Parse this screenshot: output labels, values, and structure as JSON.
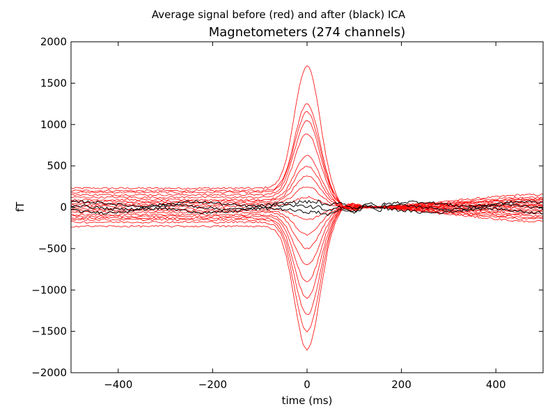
{
  "figure": {
    "suptitle": "Average signal before (red) and after (black) ICA"
  },
  "chart_data": {
    "type": "line",
    "title": "Magnetometers (274 channels)",
    "xlabel": "time (ms)",
    "ylabel": "fT",
    "xlim": [
      -500,
      500
    ],
    "ylim": [
      -2000,
      2000
    ],
    "xticks": [
      -400,
      -200,
      0,
      200,
      400
    ],
    "xtick_labels": [
      "−400",
      "−200",
      "0",
      "200",
      "400"
    ],
    "yticks": [
      -2000,
      -1500,
      -1000,
      -500,
      0,
      500,
      1000,
      1500,
      2000
    ],
    "ytick_labels": [
      "−2000",
      "−1500",
      "−1000",
      "−500",
      "0",
      "500",
      "1000",
      "1500",
      "2000"
    ],
    "grid": false,
    "channels": 274,
    "colors": {
      "before": "#ff0000",
      "after": "#000000"
    },
    "series": [
      {
        "group": "before",
        "color": "#ff0000",
        "peak_at_0ms": 1710,
        "baseline_pre": 230,
        "baseline_post": 150
      },
      {
        "group": "before",
        "color": "#ff0000",
        "peak_at_0ms": 1250,
        "baseline_pre": 200,
        "baseline_post": 120
      },
      {
        "group": "before",
        "color": "#ff0000",
        "peak_at_0ms": 1150,
        "baseline_pre": 180,
        "baseline_post": 100
      },
      {
        "group": "before",
        "color": "#ff0000",
        "peak_at_0ms": 1050,
        "baseline_pre": 150,
        "baseline_post": 90
      },
      {
        "group": "before",
        "color": "#ff0000",
        "peak_at_0ms": 890,
        "baseline_pre": 120,
        "baseline_post": 80
      },
      {
        "group": "before",
        "color": "#ff0000",
        "peak_at_0ms": 620,
        "baseline_pre": 90,
        "baseline_post": 60
      },
      {
        "group": "before",
        "color": "#ff0000",
        "peak_at_0ms": 500,
        "baseline_pre": 70,
        "baseline_post": 40
      },
      {
        "group": "before",
        "color": "#ff0000",
        "peak_at_0ms": 380,
        "baseline_pre": 50,
        "baseline_post": 30
      },
      {
        "group": "before",
        "color": "#ff0000",
        "peak_at_0ms": 250,
        "baseline_pre": 30,
        "baseline_post": 20
      },
      {
        "group": "before",
        "color": "#ff0000",
        "peak_at_0ms": 120,
        "baseline_pre": 10,
        "baseline_post": 10
      },
      {
        "group": "before",
        "color": "#ff0000",
        "peak_at_0ms": -150,
        "baseline_pre": -20,
        "baseline_post": -10
      },
      {
        "group": "before",
        "color": "#ff0000",
        "peak_at_0ms": -330,
        "baseline_pre": -40,
        "baseline_post": -30
      },
      {
        "group": "before",
        "color": "#ff0000",
        "peak_at_0ms": -500,
        "baseline_pre": -60,
        "baseline_post": -40
      },
      {
        "group": "before",
        "color": "#ff0000",
        "peak_at_0ms": -700,
        "baseline_pre": -90,
        "baseline_post": -60
      },
      {
        "group": "before",
        "color": "#ff0000",
        "peak_at_0ms": -900,
        "baseline_pre": -110,
        "baseline_post": -80
      },
      {
        "group": "before",
        "color": "#ff0000",
        "peak_at_0ms": -1100,
        "baseline_pre": -130,
        "baseline_post": -100
      },
      {
        "group": "before",
        "color": "#ff0000",
        "peak_at_0ms": -1300,
        "baseline_pre": -150,
        "baseline_post": -120
      },
      {
        "group": "before",
        "color": "#ff0000",
        "peak_at_0ms": -1500,
        "baseline_pre": -180,
        "baseline_post": -140
      },
      {
        "group": "before",
        "color": "#ff0000",
        "peak_at_0ms": -1720,
        "baseline_pre": -230,
        "baseline_post": -170
      },
      {
        "group": "after",
        "color": "#000000",
        "peak_at_0ms": 40,
        "baseline_pre": 20,
        "baseline_post": 20
      },
      {
        "group": "after",
        "color": "#000000",
        "peak_at_0ms": 0,
        "baseline_pre": 0,
        "baseline_post": 0
      },
      {
        "group": "after",
        "color": "#000000",
        "peak_at_0ms": -40,
        "baseline_pre": -20,
        "baseline_post": -20
      }
    ]
  }
}
